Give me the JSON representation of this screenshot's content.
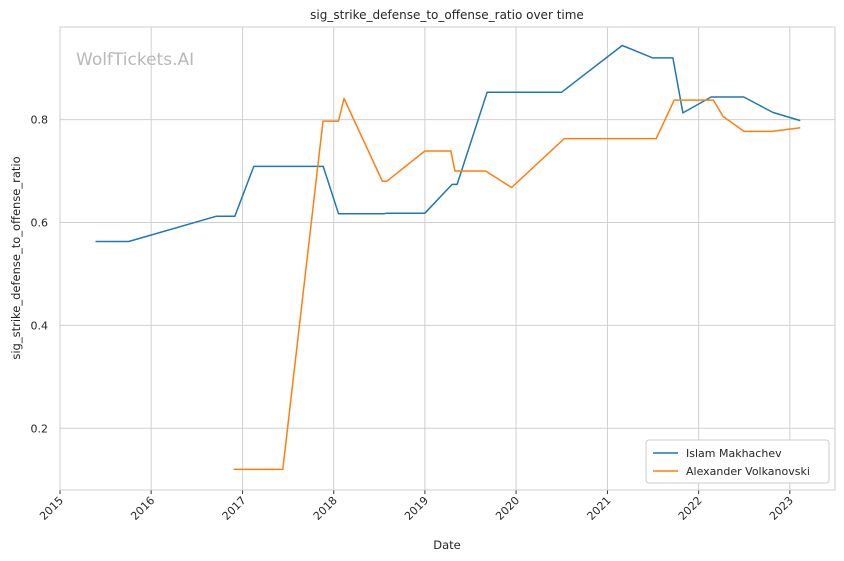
{
  "chart_data": {
    "type": "line",
    "title": "sig_strike_defense_to_offense_ratio over time",
    "xlabel": "Date",
    "ylabel": "sig_strike_defense_to_offense_ratio",
    "watermark": "WolfTickets.AI",
    "xlim": [
      "2015-01-01",
      "2023-07-01"
    ],
    "ylim": [
      0.08,
      0.98
    ],
    "x_ticks": [
      "2015",
      "2016",
      "2017",
      "2018",
      "2019",
      "2020",
      "2021",
      "2022",
      "2023"
    ],
    "y_ticks": [
      "0.2",
      "0.4",
      "0.6",
      "0.8"
    ],
    "grid": true,
    "legend_position": "bottom-right",
    "series": [
      {
        "name": "Islam Makhachev",
        "color": "#1f77b4",
        "points": [
          [
            "2015-05-23",
            0.563
          ],
          [
            "2015-10-03",
            0.563
          ],
          [
            "2016-09-17",
            0.612
          ],
          [
            "2016-12-01",
            0.612
          ],
          [
            "2017-02-15",
            0.709
          ],
          [
            "2017-11-01",
            0.709
          ],
          [
            "2017-11-20",
            0.709
          ],
          [
            "2018-01-20",
            0.617
          ],
          [
            "2018-07-20",
            0.617
          ],
          [
            "2018-08-01",
            0.618
          ],
          [
            "2019-01-01",
            0.618
          ],
          [
            "2019-04-20",
            0.674
          ],
          [
            "2019-05-10",
            0.674
          ],
          [
            "2019-09-07",
            0.853
          ],
          [
            "2020-07-01",
            0.853
          ],
          [
            "2021-03-01",
            0.944
          ],
          [
            "2021-07-01",
            0.92
          ],
          [
            "2021-09-20",
            0.92
          ],
          [
            "2021-10-30",
            0.813
          ],
          [
            "2022-02-20",
            0.844
          ],
          [
            "2022-07-01",
            0.844
          ],
          [
            "2022-10-25",
            0.814
          ],
          [
            "2023-02-12",
            0.798
          ]
        ]
      },
      {
        "name": "Alexander Volkanovski",
        "color": "#ff7f0e",
        "points": [
          [
            "2016-11-26",
            0.12
          ],
          [
            "2017-06-11",
            0.12
          ],
          [
            "2017-11-19",
            0.797
          ],
          [
            "2018-01-20",
            0.797
          ],
          [
            "2018-02-11",
            0.841
          ],
          [
            "2018-07-15",
            0.68
          ],
          [
            "2018-08-01",
            0.68
          ],
          [
            "2019-01-01",
            0.739
          ],
          [
            "2019-04-15",
            0.739
          ],
          [
            "2019-05-01",
            0.7
          ],
          [
            "2019-09-01",
            0.7
          ],
          [
            "2019-12-14",
            0.668
          ],
          [
            "2020-07-12",
            0.763
          ],
          [
            "2021-07-15",
            0.763
          ],
          [
            "2021-09-25",
            0.838
          ],
          [
            "2022-03-01",
            0.838
          ],
          [
            "2022-04-09",
            0.806
          ],
          [
            "2022-07-02",
            0.777
          ],
          [
            "2022-10-22",
            0.777
          ],
          [
            "2023-02-12",
            0.784
          ]
        ]
      }
    ]
  }
}
